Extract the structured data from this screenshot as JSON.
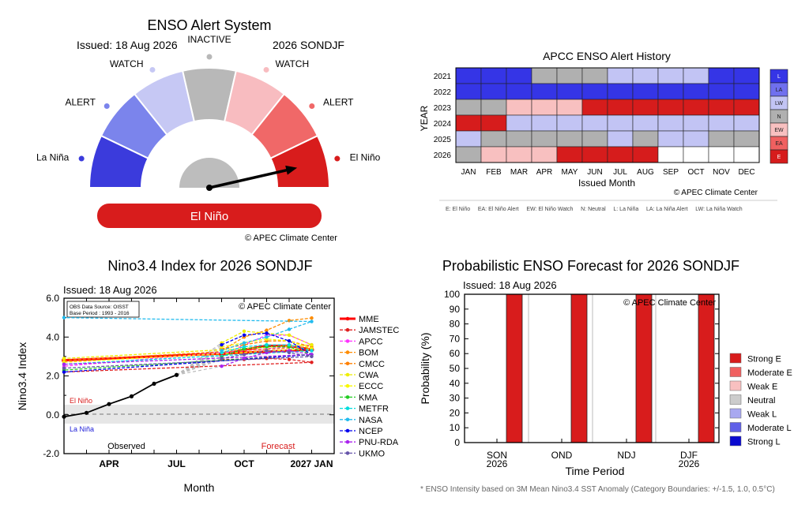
{
  "gauge": {
    "title": "ENSO Alert System",
    "issued": "Issued: 18 Aug 2026",
    "period": "2026 SONDJF",
    "segment_labels": [
      "La Niña",
      "ALERT",
      "WATCH",
      "INACTIVE",
      "WATCH",
      "ALERT",
      "El Niño"
    ],
    "colors": [
      "#3b3bdc",
      "#7b84ec",
      "#c6c8f4",
      "#b8b8b8",
      "#f8bcc0",
      "#f06868",
      "#d81c1c"
    ],
    "status": "El Niño",
    "status_color": "#d81c1c",
    "needle_segment": 6,
    "copyright": "© APEC Climate Center"
  },
  "history": {
    "title": "APCC ENSO Alert History",
    "ylabel": "YEAR",
    "xlabel": "Issued Month",
    "months": [
      "JAN",
      "FEB",
      "MAR",
      "APR",
      "MAY",
      "JUN",
      "JUL",
      "AUG",
      "SEP",
      "OCT",
      "NOV",
      "DEC"
    ],
    "years": [
      "2021",
      "2022",
      "2023",
      "2024",
      "2025",
      "2026"
    ],
    "grid": [
      [
        "L",
        "L",
        "L",
        "N",
        "N",
        "N",
        "LW",
        "LW",
        "LW",
        "LW",
        "L",
        "L"
      ],
      [
        "L",
        "L",
        "L",
        "L",
        "L",
        "L",
        "L",
        "L",
        "L",
        "L",
        "L",
        "L"
      ],
      [
        "N",
        "N",
        "EW",
        "EW",
        "EW",
        "E",
        "E",
        "E",
        "E",
        "E",
        "E",
        "E"
      ],
      [
        "E",
        "E",
        "LW",
        "LW",
        "LW",
        "LW",
        "LW",
        "LW",
        "LW",
        "LW",
        "LW",
        "LW"
      ],
      [
        "LW",
        "N",
        "N",
        "N",
        "N",
        "N",
        "LW",
        "N",
        "LW",
        "LW",
        "N",
        "N"
      ],
      [
        "N",
        "EW",
        "EW",
        "EW",
        "E",
        "E",
        "E",
        "E",
        "",
        "",
        "",
        ""
      ]
    ],
    "legend": [
      "L",
      "LA",
      "LW",
      "N",
      "EW",
      "EA",
      "E"
    ],
    "colors": {
      "L": "#3535e6",
      "LA": "#7070ee",
      "LW": "#c2c4f4",
      "N": "#b0b0b0",
      "EW": "#f8c0c0",
      "EA": "#f06060",
      "E": "#d61c1c",
      "": "#ffffff"
    },
    "copyright": "© APEC Climate Center",
    "key_text": "E: El Niño     EA: El Niño Alert     EW: El Niño Watch     N: Neutral     L: La Niña     LA: La Niña Alert     LW: La Niña Watch"
  },
  "nino": {
    "title": "Nino3.4 Index for 2026 SONDJF",
    "issued": "Issued: 18 Aug 2026",
    "obs_source": "OBS Data Source: OISST",
    "base_period": "Base Period : 1993 - 2016",
    "copyright": "© APEC Climate Center",
    "ylabel": "Nino3.4 Index",
    "xlabel": "Month",
    "yticks": [
      "6.0",
      "4.0",
      "2.0",
      "0.0",
      "-2.0"
    ],
    "xticks": [
      "APR",
      "JUL",
      "OCT",
      "2027 JAN"
    ],
    "el_nino_label": "El Niño",
    "la_nina_label": "La Niña",
    "observed_label": "Observed",
    "forecast_label": "Forecast",
    "el_nino_color": "#d81c1c",
    "la_nina_color": "#1c1cd8"
  },
  "prob": {
    "title": "Probabilistic ENSO Forecast for 2026 SONDJF",
    "issued": "Issued: 18 Aug 2026",
    "copyright": "© APEC Climate Center",
    "ylabel": "Probability (%)",
    "xlabel": "Time Period",
    "yticks": [
      "100",
      "90",
      "80",
      "70",
      "60",
      "50",
      "40",
      "30",
      "20",
      "10",
      "0"
    ],
    "periods": [
      [
        "SON",
        "2026"
      ],
      [
        "OND",
        ""
      ],
      [
        "NDJ",
        ""
      ],
      [
        "DJF",
        "2026"
      ]
    ],
    "legend": [
      "Strong E",
      "Moderate E",
      "Weak E",
      "Neutral",
      "Weak L",
      "Moderate L",
      "Strong L"
    ],
    "legend_colors": [
      "#d81c1c",
      "#f06060",
      "#f8c0c0",
      "#cccccc",
      "#a8a8f0",
      "#6060e8",
      "#0a0ad0"
    ],
    "footnote": "* ENSO Intensity based on 3M Mean Nino3.4 SST Anomaly (Category Boundaries: +/-1.5, 1.0, 0.5°C)"
  },
  "chart_data": [
    {
      "type": "heatmap",
      "title": "APCC ENSO Alert History",
      "xlabel": "Issued Month",
      "ylabel": "YEAR",
      "x": [
        "JAN",
        "FEB",
        "MAR",
        "APR",
        "MAY",
        "JUN",
        "JUL",
        "AUG",
        "SEP",
        "OCT",
        "NOV",
        "DEC"
      ],
      "y": [
        "2021",
        "2022",
        "2023",
        "2024",
        "2025",
        "2026"
      ],
      "values": "see history.grid"
    },
    {
      "type": "line",
      "title": "Nino3.4 Index for 2026 SONDJF",
      "xlabel": "Month",
      "ylabel": "Nino3.4 Index",
      "ylim": [
        -2,
        6
      ],
      "x_months": [
        "FEB",
        "MAR",
        "APR",
        "MAY",
        "JUN",
        "JUL",
        "AUG",
        "SEP",
        "OCT",
        "NOV",
        "DEC",
        "JAN",
        "FEB"
      ],
      "observed": {
        "months": [
          "FEB",
          "MAR",
          "APR",
          "MAY",
          "JUN",
          "JUL"
        ],
        "values": [
          -0.1,
          0.1,
          0.55,
          0.95,
          1.6,
          2.05
        ]
      },
      "forecast_months": [
        "SEP",
        "OCT",
        "NOV",
        "DEC",
        "JAN",
        "FEB"
      ],
      "series": [
        {
          "name": "MME",
          "color": "#ff0000",
          "values": [
            3.1,
            3.35,
            3.55,
            3.55,
            3.35,
            2.8
          ]
        },
        {
          "name": "JAMSTEC",
          "color": "#e02020",
          "values": [
            2.85,
            2.85,
            2.9,
            2.85,
            2.7,
            2.2
          ]
        },
        {
          "name": "APCC",
          "color": "#ff33ff",
          "values": [
            3.0,
            3.6,
            4.1,
            4.1,
            3.6,
            2.5
          ]
        },
        {
          "name": "BOM",
          "color": "#ff8c00",
          "values": [
            3.3,
            4.0,
            4.35,
            4.85,
            4.98,
            null
          ]
        },
        {
          "name": "CMCC",
          "color": "#ff8000",
          "values": [
            3.4,
            3.6,
            3.8,
            3.8,
            3.5,
            2.8
          ]
        },
        {
          "name": "CWA",
          "color": "#eeee00",
          "values": [
            3.7,
            4.3,
            4.2,
            4.1,
            3.6,
            2.9
          ]
        },
        {
          "name": "ECCC",
          "color": "#f8f800",
          "values": [
            3.5,
            3.7,
            3.9,
            3.8,
            3.4,
            2.7
          ]
        },
        {
          "name": "KMA",
          "color": "#22cc22",
          "values": [
            3.0,
            3.4,
            3.5,
            3.5,
            3.1,
            2.3
          ]
        },
        {
          "name": "METFR",
          "color": "#00dddd",
          "values": [
            3.2,
            3.5,
            3.6,
            3.6,
            3.3,
            2.6
          ]
        },
        {
          "name": "NASA",
          "color": "#22bbee",
          "values": [
            3.3,
            3.7,
            4.0,
            4.4,
            4.8,
            5.0
          ]
        },
        {
          "name": "NCEP",
          "color": "#0000ee",
          "values": [
            3.6,
            4.1,
            4.2,
            3.8,
            3.1,
            2.2
          ]
        },
        {
          "name": "PNU-RDA",
          "color": "#aa22ee",
          "values": [
            2.5,
            2.9,
            3.2,
            3.3,
            3.1,
            2.6
          ]
        },
        {
          "name": "UKMO",
          "color": "#6655aa",
          "values": [
            2.9,
            3.1,
            3.3,
            3.2,
            3.0,
            2.4
          ]
        }
      ]
    },
    {
      "type": "bar",
      "title": "Probabilistic ENSO Forecast for 2026 SONDJF",
      "xlabel": "Time Period",
      "ylabel": "Probability (%)",
      "ylim": [
        0,
        100
      ],
      "categories": [
        "SON 2026",
        "OND",
        "NDJ",
        "DJF 2026"
      ],
      "series": [
        {
          "name": "Strong E",
          "values": [
            100,
            100,
            100,
            100
          ]
        }
      ]
    }
  ]
}
